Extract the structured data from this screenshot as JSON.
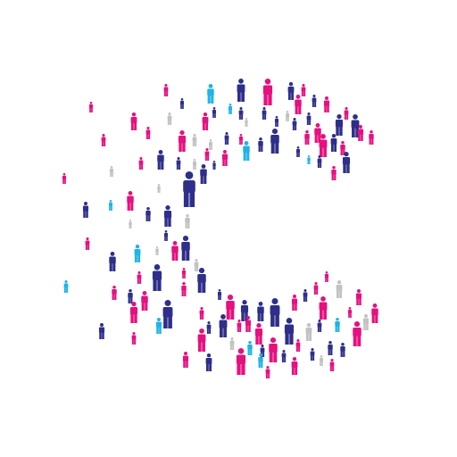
{
  "image": {
    "subject": "crowd-of-people-figures",
    "icon": "person-icon",
    "palette": {
      "navy": "#2e2f8a",
      "magenta": "#e5117f",
      "cyan": "#1fb4e6",
      "grey": "#c2c2c2",
      "background": "#ffffff"
    }
  }
}
